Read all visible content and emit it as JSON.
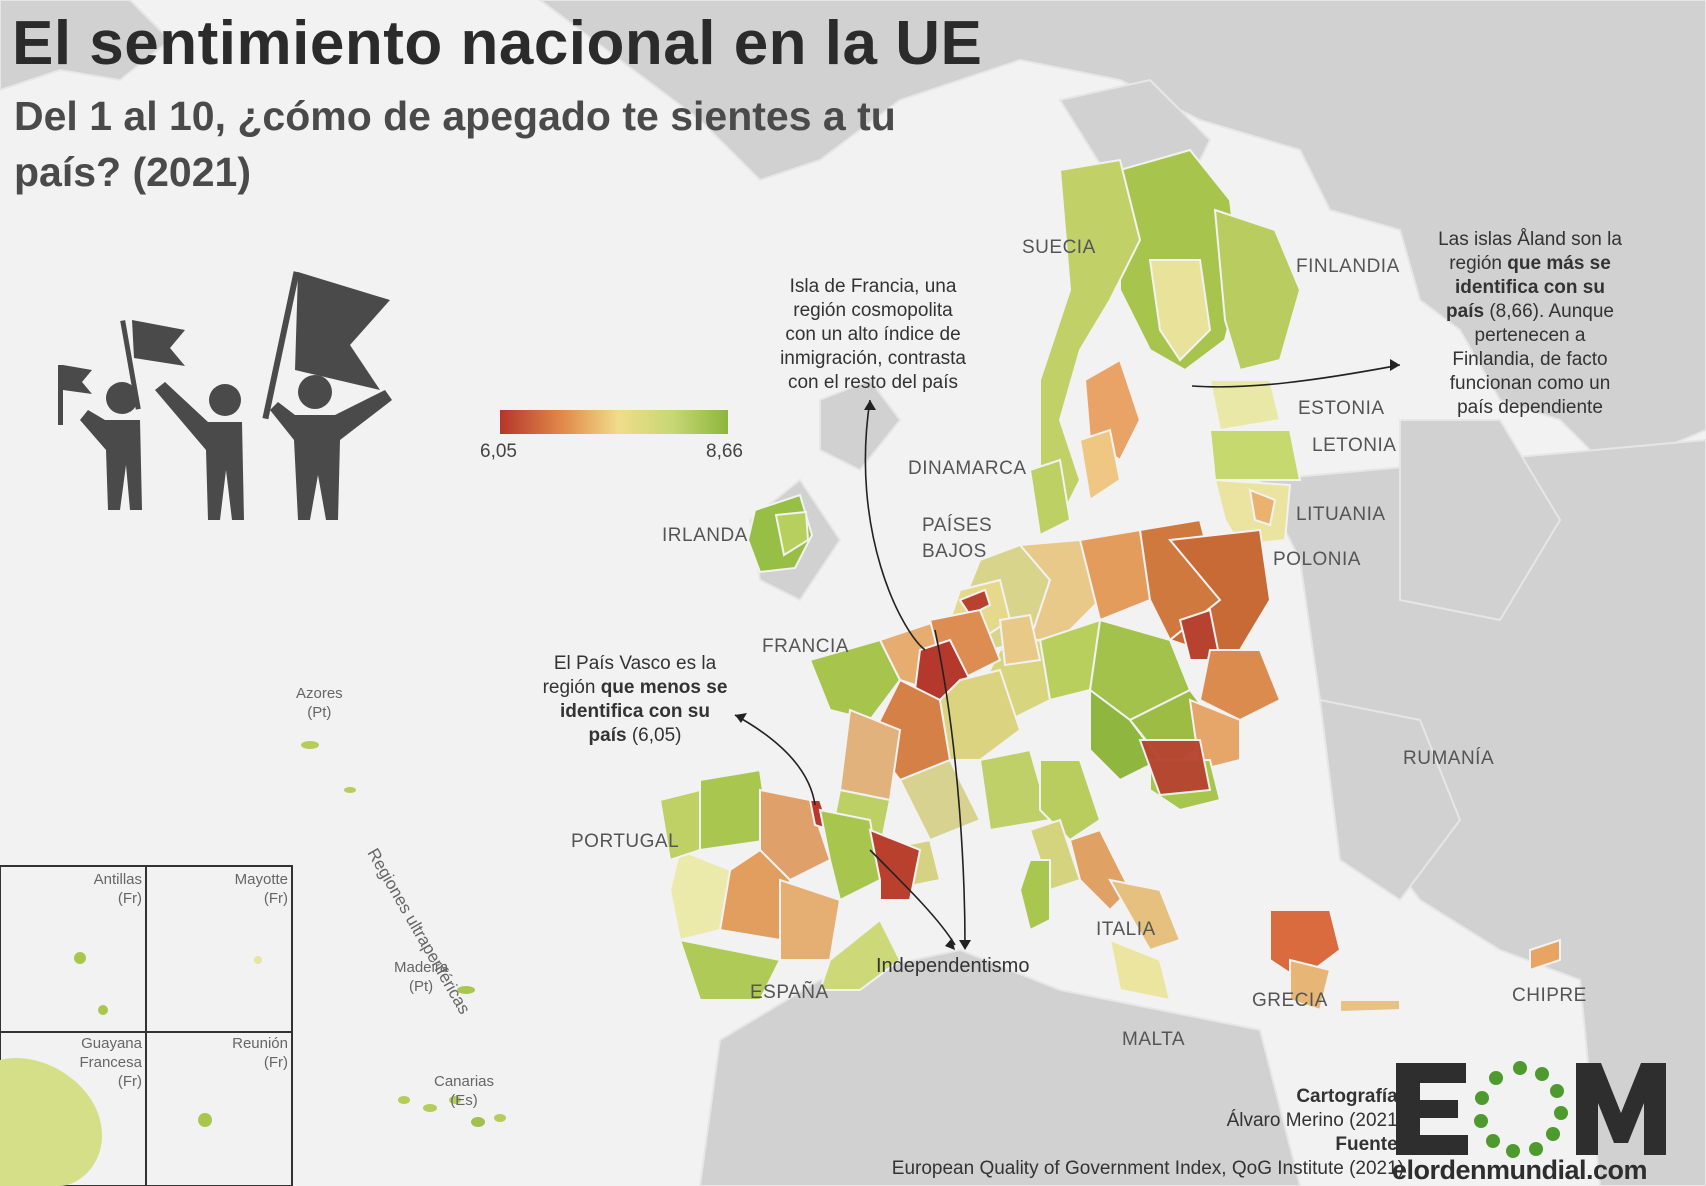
{
  "title": "El sentimiento nacional en la UE",
  "subtitle": "Del 1 al 10, ¿cómo de apegado te sientes a tu país? (2021)",
  "legend": {
    "min": "6,05",
    "max": "8,66",
    "colors": [
      "#b5362a",
      "#e28b4c",
      "#f1dc8b",
      "#c6d774",
      "#8db63d"
    ]
  },
  "countries": {
    "suecia": "SUECIA",
    "finlandia": "FINLANDIA",
    "estonia": "ESTONIA",
    "letonia": "LETONIA",
    "lituania": "LITUANIA",
    "dinamarca": "DINAMARCA",
    "paises_bajos_1": "PAÍSES",
    "paises_bajos_2": "BAJOS",
    "irlanda": "IRLANDA",
    "polonia": "POLONIA",
    "francia": "FRANCIA",
    "rumania": "RUMANÍA",
    "portugal": "PORTUGAL",
    "italia": "ITALIA",
    "espana": "ESPAÑA",
    "grecia": "GRECIA",
    "chipre": "CHIPRE",
    "malta": "MALTA"
  },
  "annotations": {
    "aland": {
      "l1": "Las islas Åland son la",
      "l2a": "región ",
      "l2b": "que más se",
      "l3": "identifica con su",
      "l4a": "país",
      "l4b": " (8,66). Aunque",
      "l5": "pertenecen a",
      "l6": "Finlandia, de facto",
      "l7": "funcionan como un",
      "l8": "país dependiente"
    },
    "iledefrance": {
      "l1": "Isla de Francia, una",
      "l2": "región cosmopolita",
      "l3": "con un alto índice de",
      "l4": "inmigración, contrasta",
      "l5": "con el resto del país"
    },
    "paisvasco": {
      "l1": "El País Vasco es la",
      "l2a": "región ",
      "l2b": "que menos se",
      "l3": "identifica con su",
      "l4a": "país",
      "l4b": " (6,05)"
    },
    "independentismo": "Independentismo",
    "ultraperifericas": "Regiones ultraperiféricas"
  },
  "islands": {
    "azores": {
      "name": "Azores",
      "country": "(Pt)"
    },
    "madeira": {
      "name": "Madeira",
      "country": "(Pt)"
    },
    "canarias": {
      "name": "Canarias",
      "country": "(Es)"
    }
  },
  "insets": {
    "antillas": {
      "name": "Antillas",
      "country": "(Fr)"
    },
    "mayotte": {
      "name": "Mayotte",
      "country": "(Fr)"
    },
    "guayana_1": "Guayana",
    "guayana_2": "Francesa",
    "guayana_3": "(Fr)",
    "reunion": {
      "name": "Reunión",
      "country": "(Fr)"
    }
  },
  "credits": {
    "carto_label": "Cartografía:",
    "carto_value": "Álvaro Merino (2021)",
    "source_label": "Fuente:",
    "source_value": "European Quality of Government Index, QoG Institute (2021)"
  },
  "logo": {
    "letters": "EOM",
    "url_text": "elordenmundial.com",
    "colors": {
      "dark": "#2e2e2e",
      "green": "#4e9a2f"
    }
  },
  "icon_names": [
    "people-with-flags-icon",
    "eom-logo-icon"
  ]
}
